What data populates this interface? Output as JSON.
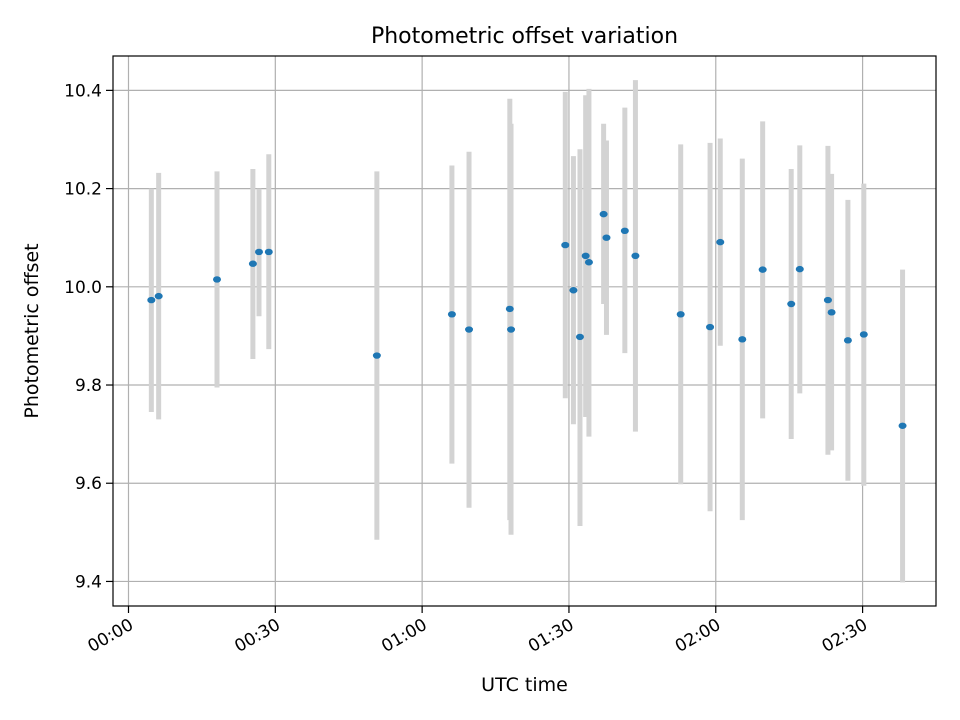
{
  "chart_data": {
    "type": "scatter",
    "title": "Photometric offset variation",
    "xlabel": "UTC time",
    "ylabel": "Photometric offset",
    "x_format": "HH:MM",
    "xlim": [
      "-00:03:10",
      "02:45:00"
    ],
    "ylim": [
      9.35,
      10.47
    ],
    "x_ticks": [
      "00:00",
      "00:30",
      "01:00",
      "01:30",
      "02:00",
      "02:30"
    ],
    "y_ticks": [
      9.4,
      9.6,
      9.8,
      10.0,
      10.2,
      10.4
    ],
    "grid": true,
    "colors": {
      "marker": "#1f77b4",
      "errorbar": "#d3d3d3",
      "grid": "#b0b0b0"
    },
    "points": [
      {
        "t": "00:04:40",
        "y": 9.973,
        "lo": 9.745,
        "hi": 10.2
      },
      {
        "t": "00:06:10",
        "y": 9.981,
        "lo": 9.73,
        "hi": 10.232
      },
      {
        "t": "00:18:05",
        "y": 10.015,
        "lo": 9.795,
        "hi": 10.235
      },
      {
        "t": "00:25:25",
        "y": 10.047,
        "lo": 9.853,
        "hi": 10.24
      },
      {
        "t": "00:26:40",
        "y": 10.071,
        "lo": 9.94,
        "hi": 10.2
      },
      {
        "t": "00:28:40",
        "y": 10.071,
        "lo": 9.873,
        "hi": 10.27
      },
      {
        "t": "00:50:45",
        "y": 9.86,
        "lo": 9.485,
        "hi": 10.235
      },
      {
        "t": "01:06:05",
        "y": 9.944,
        "lo": 9.64,
        "hi": 10.247
      },
      {
        "t": "01:09:35",
        "y": 9.913,
        "lo": 9.55,
        "hi": 10.275
      },
      {
        "t": "01:17:55",
        "y": 9.955,
        "lo": 9.525,
        "hi": 10.383
      },
      {
        "t": "01:18:10",
        "y": 9.913,
        "lo": 9.495,
        "hi": 10.332
      },
      {
        "t": "01:29:15",
        "y": 10.085,
        "lo": 9.773,
        "hi": 10.397
      },
      {
        "t": "01:30:55",
        "y": 9.993,
        "lo": 9.72,
        "hi": 10.266
      },
      {
        "t": "01:32:15",
        "y": 9.898,
        "lo": 9.513,
        "hi": 10.28
      },
      {
        "t": "01:33:25",
        "y": 10.063,
        "lo": 9.735,
        "hi": 10.39
      },
      {
        "t": "01:34:05",
        "y": 10.05,
        "lo": 9.695,
        "hi": 10.403
      },
      {
        "t": "01:37:05",
        "y": 10.148,
        "lo": 9.965,
        "hi": 10.332
      },
      {
        "t": "01:37:40",
        "y": 10.1,
        "lo": 9.902,
        "hi": 10.298
      },
      {
        "t": "01:41:25",
        "y": 10.114,
        "lo": 9.865,
        "hi": 10.365
      },
      {
        "t": "01:43:35",
        "y": 10.063,
        "lo": 9.705,
        "hi": 10.421
      },
      {
        "t": "01:52:50",
        "y": 9.944,
        "lo": 9.598,
        "hi": 10.29
      },
      {
        "t": "01:58:50",
        "y": 9.918,
        "lo": 9.543,
        "hi": 10.293
      },
      {
        "t": "02:00:55",
        "y": 10.091,
        "lo": 9.88,
        "hi": 10.302
      },
      {
        "t": "02:05:25",
        "y": 9.893,
        "lo": 9.525,
        "hi": 10.261
      },
      {
        "t": "02:09:35",
        "y": 10.035,
        "lo": 9.732,
        "hi": 10.337
      },
      {
        "t": "02:15:25",
        "y": 9.965,
        "lo": 9.69,
        "hi": 10.24
      },
      {
        "t": "02:17:10",
        "y": 10.036,
        "lo": 9.783,
        "hi": 10.288
      },
      {
        "t": "02:22:55",
        "y": 9.973,
        "lo": 9.658,
        "hi": 10.287
      },
      {
        "t": "02:23:40",
        "y": 9.948,
        "lo": 9.667,
        "hi": 10.23
      },
      {
        "t": "02:27:00",
        "y": 9.891,
        "lo": 9.605,
        "hi": 10.177
      },
      {
        "t": "02:30:15",
        "y": 9.903,
        "lo": 9.595,
        "hi": 10.21
      },
      {
        "t": "02:38:10",
        "y": 9.717,
        "lo": 9.398,
        "hi": 10.035
      }
    ]
  }
}
